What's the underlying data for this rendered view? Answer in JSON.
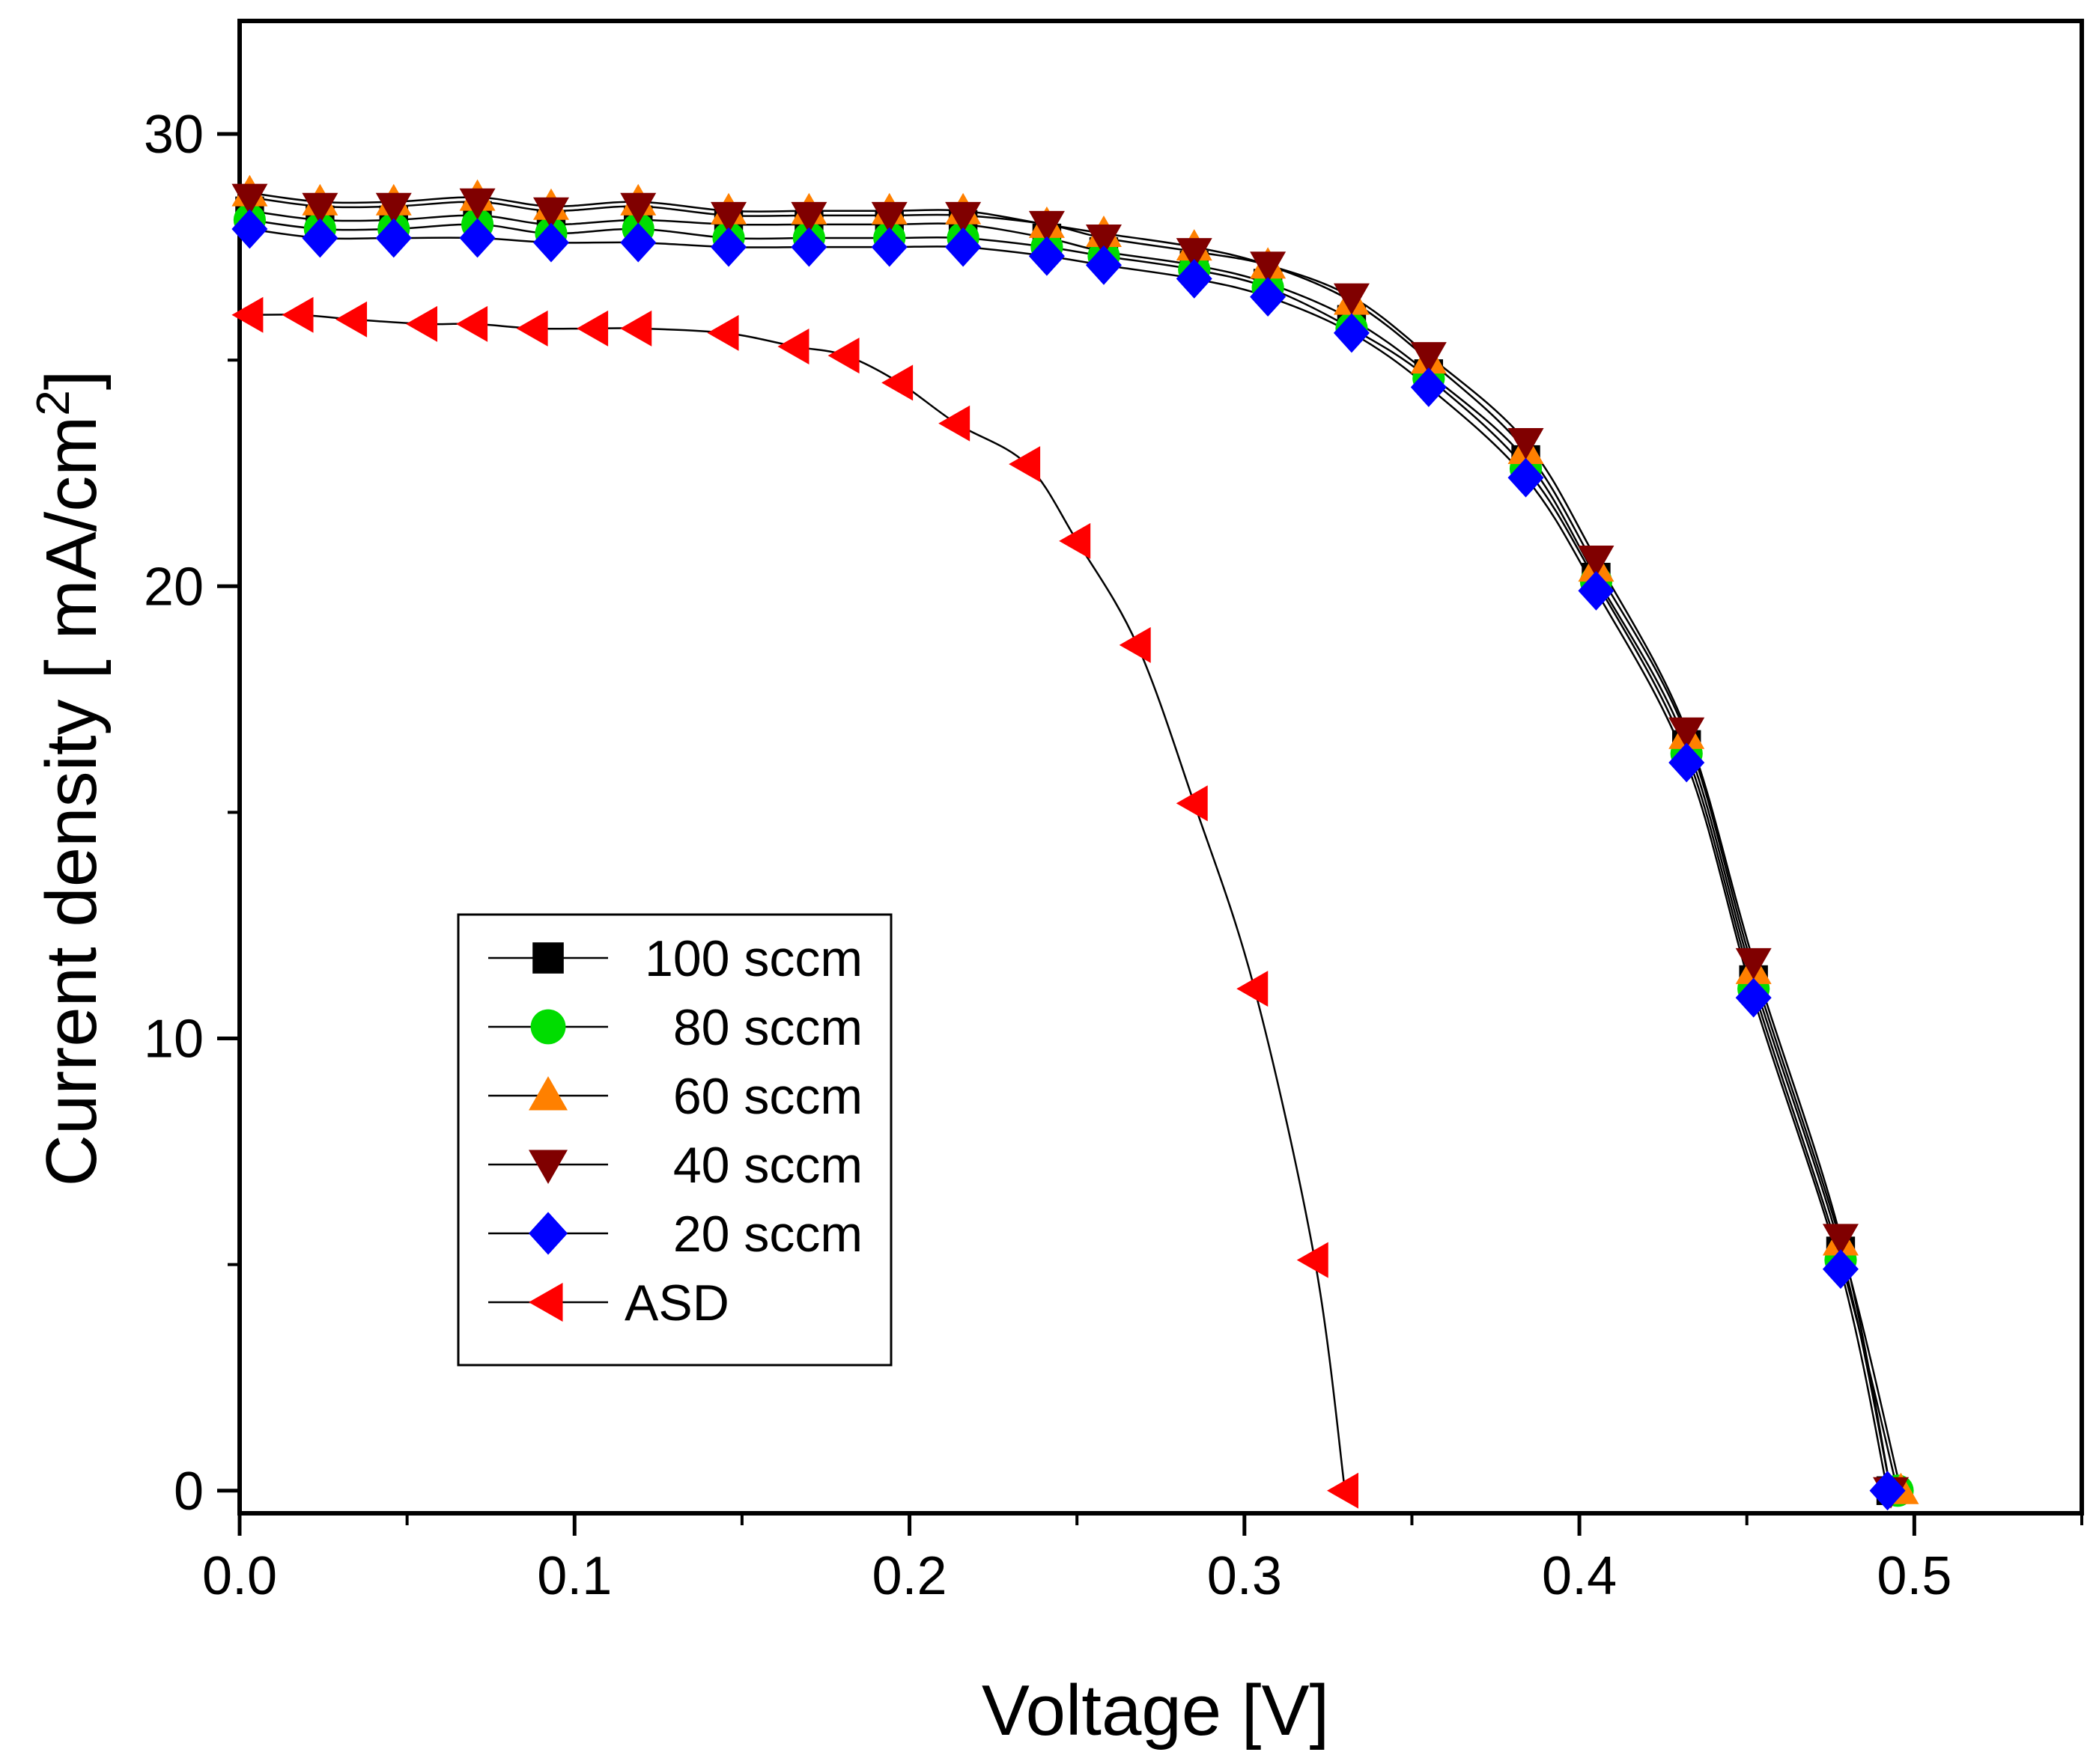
{
  "chart_data": {
    "type": "line",
    "title": "",
    "xlabel": "Voltage [V]",
    "ylabel": "Current density [ mA/cm",
    "ylabel_superscript": "2",
    "ylabel_suffix": "]",
    "xlim": [
      0.0,
      0.55
    ],
    "ylim": [
      -0.5,
      32.5
    ],
    "xticks": [
      0.0,
      0.1,
      0.2,
      0.3,
      0.4,
      0.5
    ],
    "xtick_labels": [
      "0.0",
      "0.1",
      "0.2",
      "0.3",
      "0.4",
      "0.5"
    ],
    "yticks": [
      0,
      10,
      20,
      30
    ],
    "ytick_labels": [
      "0",
      "10",
      "20",
      "30"
    ],
    "grid": false,
    "legend_position": "lower-left",
    "series": [
      {
        "name": "100 sccm",
        "marker": "square",
        "color": "#000000",
        "x": [
          0.003,
          0.024,
          0.046,
          0.071,
          0.093,
          0.119,
          0.146,
          0.17,
          0.194,
          0.216,
          0.241,
          0.258,
          0.285,
          0.307,
          0.332,
          0.355,
          0.384,
          0.405,
          0.432,
          0.452,
          0.478,
          0.493
        ],
        "y": [
          28.3,
          28.1,
          28.1,
          28.2,
          28.0,
          28.1,
          28.0,
          28.0,
          28.0,
          28.0,
          27.7,
          27.4,
          27.1,
          26.7,
          25.9,
          24.7,
          22.8,
          20.2,
          16.5,
          11.3,
          5.3,
          0.0
        ]
      },
      {
        "name": "80 sccm",
        "marker": "circle",
        "color": "#00dd00",
        "x": [
          0.003,
          0.024,
          0.046,
          0.071,
          0.093,
          0.119,
          0.146,
          0.17,
          0.194,
          0.216,
          0.241,
          0.258,
          0.285,
          0.307,
          0.332,
          0.355,
          0.384,
          0.405,
          0.432,
          0.452,
          0.478,
          0.495
        ],
        "y": [
          28.1,
          27.9,
          27.9,
          28.0,
          27.8,
          27.9,
          27.7,
          27.7,
          27.7,
          27.7,
          27.5,
          27.3,
          27.0,
          26.6,
          25.7,
          24.6,
          22.6,
          20.1,
          16.3,
          11.1,
          5.1,
          0.0
        ]
      },
      {
        "name": "60 sccm",
        "marker": "triangle-up",
        "color": "#ff8000",
        "x": [
          0.003,
          0.024,
          0.046,
          0.071,
          0.093,
          0.119,
          0.146,
          0.17,
          0.194,
          0.216,
          0.241,
          0.258,
          0.285,
          0.307,
          0.332,
          0.355,
          0.384,
          0.405,
          0.432,
          0.452,
          0.478,
          0.496
        ],
        "y": [
          28.7,
          28.5,
          28.5,
          28.6,
          28.4,
          28.5,
          28.3,
          28.3,
          28.3,
          28.3,
          28.0,
          27.8,
          27.5,
          27.1,
          26.3,
          25.0,
          23.0,
          20.4,
          16.7,
          11.5,
          5.5,
          0.0
        ]
      },
      {
        "name": "40 sccm",
        "marker": "triangle-down",
        "color": "#800000",
        "x": [
          0.003,
          0.024,
          0.046,
          0.071,
          0.093,
          0.119,
          0.146,
          0.17,
          0.194,
          0.216,
          0.241,
          0.258,
          0.285,
          0.307,
          0.332,
          0.355,
          0.384,
          0.405,
          0.432,
          0.452,
          0.478,
          0.493
        ],
        "y": [
          28.6,
          28.4,
          28.4,
          28.5,
          28.3,
          28.4,
          28.2,
          28.2,
          28.2,
          28.2,
          28.0,
          27.7,
          27.4,
          27.1,
          26.4,
          25.1,
          23.2,
          20.6,
          16.8,
          11.7,
          5.6,
          0.0
        ]
      },
      {
        "name": "20 sccm",
        "marker": "diamond",
        "color": "#0000ff",
        "x": [
          0.003,
          0.024,
          0.046,
          0.071,
          0.093,
          0.119,
          0.146,
          0.17,
          0.194,
          0.216,
          0.241,
          0.258,
          0.285,
          0.307,
          0.332,
          0.355,
          0.384,
          0.405,
          0.432,
          0.452,
          0.478,
          0.492
        ],
        "y": [
          27.9,
          27.7,
          27.7,
          27.7,
          27.6,
          27.6,
          27.5,
          27.5,
          27.5,
          27.5,
          27.3,
          27.1,
          26.8,
          26.4,
          25.6,
          24.4,
          22.4,
          19.9,
          16.1,
          10.9,
          4.9,
          0.0
        ]
      },
      {
        "name": "ASD",
        "marker": "triangle-left",
        "color": "#ff0000",
        "x": [
          0.003,
          0.018,
          0.034,
          0.055,
          0.07,
          0.088,
          0.106,
          0.119,
          0.145,
          0.166,
          0.181,
          0.197,
          0.214,
          0.235,
          0.25,
          0.268,
          0.285,
          0.303,
          0.321,
          0.33
        ],
        "y": [
          26.0,
          26.0,
          25.9,
          25.8,
          25.8,
          25.7,
          25.7,
          25.7,
          25.6,
          25.3,
          25.1,
          24.5,
          23.6,
          22.7,
          21.0,
          18.7,
          15.2,
          11.1,
          5.1,
          0.0
        ]
      }
    ]
  }
}
